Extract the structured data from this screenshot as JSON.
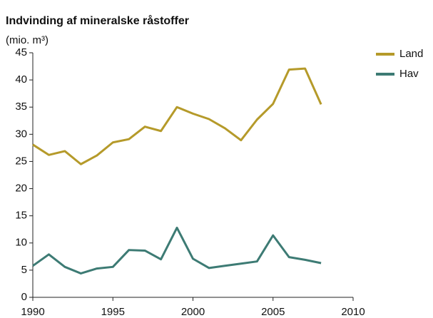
{
  "chart_data": {
    "type": "line",
    "title": "Indvinding af mineralske råstoffer",
    "subtitle": "(mio. m³)",
    "x": [
      1990,
      1991,
      1992,
      1993,
      1994,
      1995,
      1996,
      1997,
      1998,
      1999,
      2000,
      2001,
      2002,
      2003,
      2004,
      2005,
      2006,
      2007,
      2008
    ],
    "series": [
      {
        "name": "Land",
        "color": "#b59a2a",
        "values": [
          28.1,
          26.2,
          26.9,
          24.5,
          26.1,
          28.5,
          29.1,
          31.4,
          30.6,
          35.0,
          33.8,
          32.8,
          31.1,
          28.9,
          32.7,
          35.6,
          41.9,
          42.1,
          35.5
        ]
      },
      {
        "name": "Hav",
        "color": "#3d7b74",
        "values": [
          5.8,
          7.9,
          5.6,
          4.4,
          5.3,
          5.6,
          8.7,
          8.6,
          7.0,
          12.8,
          7.1,
          5.4,
          5.8,
          6.2,
          6.6,
          11.4,
          7.4,
          6.9,
          6.3
        ]
      }
    ],
    "xlim": [
      1990,
      2010
    ],
    "xticks": [
      1990,
      1995,
      2000,
      2005,
      2010
    ],
    "ylim": [
      0,
      45
    ],
    "yticks": [
      0,
      5,
      10,
      15,
      20,
      25,
      30,
      35,
      40,
      45
    ],
    "grid": false,
    "legend": "right"
  }
}
